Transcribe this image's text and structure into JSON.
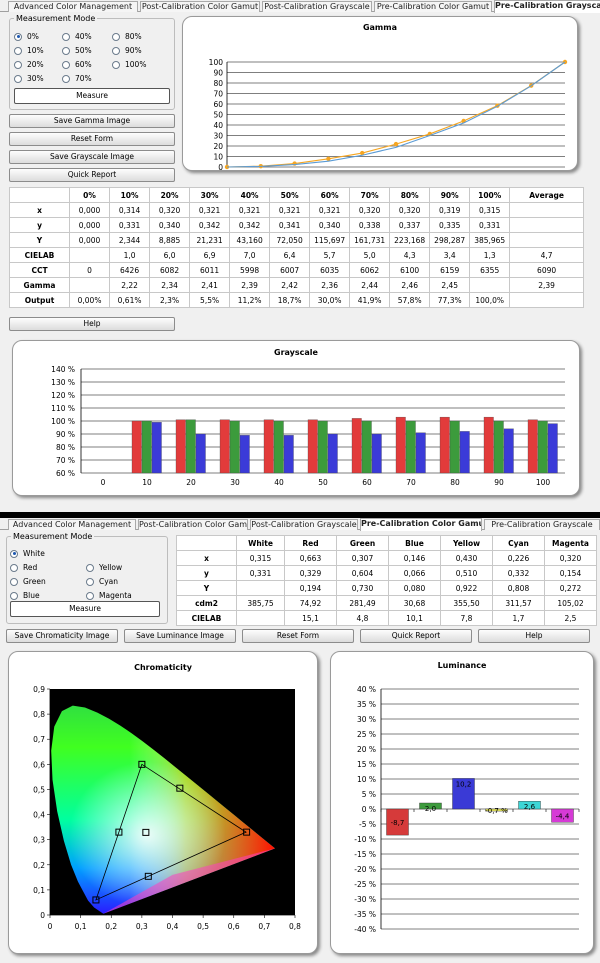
{
  "top": {
    "tabs": [
      "Advanced Color Management",
      "Post-Calibration Color Gamut",
      "Post-Calibration Grayscale",
      "Pre-Calibration Color Gamut",
      "Pre-Calibration Grayscale"
    ],
    "active_tab": 4,
    "measurement_mode": {
      "legend": "Measurement Mode",
      "options": [
        "0%",
        "10%",
        "20%",
        "30%",
        "40%",
        "50%",
        "60%",
        "70%",
        "80%",
        "90%",
        "100%"
      ],
      "selected": "0%"
    },
    "buttons": {
      "measure": "Measure",
      "save_gamma": "Save Gamma Image",
      "reset": "Reset Form",
      "save_grayscale": "Save Grayscale Image",
      "quick_report": "Quick Report",
      "help": "Help"
    },
    "table": {
      "headers": [
        "",
        "0%",
        "10%",
        "20%",
        "30%",
        "40%",
        "50%",
        "60%",
        "70%",
        "80%",
        "90%",
        "100%",
        "Average"
      ],
      "rows": [
        [
          "x",
          "0,000",
          "0,314",
          "0,320",
          "0,321",
          "0,321",
          "0,321",
          "0,321",
          "0,320",
          "0,320",
          "0,319",
          "0,315",
          ""
        ],
        [
          "y",
          "0,000",
          "0,331",
          "0,340",
          "0,342",
          "0,342",
          "0,341",
          "0,340",
          "0,338",
          "0,337",
          "0,335",
          "0,331",
          ""
        ],
        [
          "Y",
          "0,000",
          "2,344",
          "8,885",
          "21,231",
          "43,160",
          "72,050",
          "115,697",
          "161,731",
          "223,168",
          "298,287",
          "385,965",
          ""
        ],
        [
          "CIELAB",
          "",
          "1,0",
          "6,0",
          "6,9",
          "7,0",
          "6,4",
          "5,7",
          "5,0",
          "4,3",
          "3,4",
          "1,3",
          "4,7"
        ],
        [
          "CCT",
          "0",
          "6426",
          "6082",
          "6011",
          "5998",
          "6007",
          "6035",
          "6062",
          "6100",
          "6159",
          "6355",
          "6090"
        ],
        [
          "Gamma",
          "",
          "2,22",
          "2,34",
          "2,41",
          "2,39",
          "2,42",
          "2,36",
          "2,44",
          "2,46",
          "2,45",
          "",
          "2,39"
        ],
        [
          "Output",
          "0,00%",
          "0,61%",
          "2,3%",
          "5,5%",
          "11,2%",
          "18,7%",
          "30,0%",
          "41,9%",
          "57,8%",
          "77,3%",
          "100,0%",
          ""
        ]
      ]
    }
  },
  "bottom": {
    "tabs": [
      "Advanced Color Management",
      "Post-Calibration Color Gamut",
      "Post-Calibration Grayscale",
      "Pre-Calibration Color Gamut",
      "Pre-Calibration Grayscale"
    ],
    "active_tab": 3,
    "measurement_mode": {
      "legend": "Measurement Mode",
      "options": [
        "White",
        "Red",
        "Green",
        "Blue",
        "Yellow",
        "Cyan",
        "Magenta"
      ],
      "selected": "White"
    },
    "buttons": {
      "measure": "Measure",
      "save_chromaticity": "Save Chromaticity Image",
      "save_luminance": "Save Luminance Image",
      "reset": "Reset Form",
      "quick_report": "Quick Report",
      "help": "Help"
    },
    "table": {
      "headers": [
        "",
        "White",
        "Red",
        "Green",
        "Blue",
        "Yellow",
        "Cyan",
        "Magenta"
      ],
      "rows": [
        [
          "x",
          "0,315",
          "0,663",
          "0,307",
          "0,146",
          "0,430",
          "0,226",
          "0,320"
        ],
        [
          "y",
          "0,331",
          "0,329",
          "0,604",
          "0,066",
          "0,510",
          "0,332",
          "0,154"
        ],
        [
          "Y",
          "",
          "0,194",
          "0,730",
          "0,080",
          "0,922",
          "0,808",
          "0,272"
        ],
        [
          "cdm2",
          "385,75",
          "74,92",
          "281,49",
          "30,68",
          "355,50",
          "311,57",
          "105,02"
        ],
        [
          "CIELAB",
          "",
          "15,1",
          "4,8",
          "10,1",
          "7,8",
          "1,7",
          "2,5"
        ]
      ]
    }
  },
  "chart_data": [
    {
      "type": "line",
      "title": "Gamma",
      "x": [
        0,
        10,
        20,
        30,
        40,
        50,
        60,
        70,
        80,
        90,
        100
      ],
      "series": [
        {
          "values": [
            0,
            0.8,
            3.3,
            7.8,
            13.3,
            21.8,
            31.5,
            43.8,
            58.4,
            77.5,
            100
          ],
          "color": "#f5a623"
        },
        {
          "values": [
            0,
            0.6,
            2.3,
            5.5,
            11.2,
            18.7,
            30.0,
            41.9,
            57.8,
            77.3,
            100
          ],
          "color": "#5b9bd5"
        }
      ],
      "xticks": [
        10,
        20,
        30,
        40,
        50,
        60,
        70,
        80,
        90
      ],
      "yticks": [
        0,
        10,
        20,
        30,
        40,
        50,
        60,
        70,
        80,
        90,
        100
      ],
      "xlim": [
        0,
        100
      ],
      "ylim": [
        0,
        100
      ],
      "grid": true
    },
    {
      "type": "bar",
      "title": "Grayscale",
      "categories": [
        "0",
        "10",
        "20",
        "30",
        "40",
        "50",
        "60",
        "70",
        "80",
        "90",
        "100"
      ],
      "series": [
        {
          "values": [
            null,
            100,
            101,
            101,
            101,
            101,
            102,
            103,
            103,
            103,
            101
          ],
          "color": "#e23b3b"
        },
        {
          "values": [
            null,
            100,
            101,
            100,
            100,
            100,
            100,
            100,
            100,
            100,
            100
          ],
          "color": "#3c9b3c"
        },
        {
          "values": [
            null,
            99,
            90,
            89,
            89,
            90,
            90,
            91,
            92,
            94,
            98
          ],
          "color": "#3b3bd8"
        }
      ],
      "ylim": [
        60,
        140
      ],
      "yticks": [
        "60 %",
        "70 %",
        "80 %",
        "90 %",
        "100 %",
        "110 %",
        "120 %",
        "130 %",
        "140 %"
      ],
      "grid": true
    },
    {
      "type": "scatter",
      "title": "Chromaticity",
      "points": [
        {
          "name": "Red",
          "x": 0.642,
          "y": 0.33
        },
        {
          "name": "Green",
          "x": 0.3,
          "y": 0.6
        },
        {
          "name": "Blue",
          "x": 0.15,
          "y": 0.06
        },
        {
          "name": "Yellow",
          "x": 0.424,
          "y": 0.505
        },
        {
          "name": "Cyan",
          "x": 0.225,
          "y": 0.33
        },
        {
          "name": "Magenta",
          "x": 0.321,
          "y": 0.154
        },
        {
          "name": "White",
          "x": 0.313,
          "y": 0.329
        }
      ],
      "xticks": [
        "0",
        "0,1",
        "0,2",
        "0,3",
        "0,4",
        "0,5",
        "0,6",
        "0,7",
        "0,8"
      ],
      "yticks": [
        "0",
        "0,1",
        "0,2",
        "0,3",
        "0,4",
        "0,5",
        "0,6",
        "0,7",
        "0,8",
        "0,9"
      ],
      "xlim": [
        0,
        0.8
      ],
      "ylim": [
        0,
        0.9
      ],
      "background": "#000000"
    },
    {
      "type": "bar",
      "title": "Luminance",
      "categories": [
        "Red",
        "Green",
        "Blue",
        "Yellow",
        "Cyan",
        "Magenta"
      ],
      "values": [
        -8.7,
        2.0,
        10.2,
        -0.7,
        2.6,
        -4.4
      ],
      "labels": [
        "-8,7",
        "2,0",
        "10,2",
        "-0,7 %",
        "2,6",
        "-4,4"
      ],
      "colors": [
        "#d63a3a",
        "#3d9b3d",
        "#3a3ad6",
        "#e8e85a",
        "#3dd6d6",
        "#d63ad6"
      ],
      "ylim": [
        -40,
        40
      ],
      "yticks": [
        "-40 %",
        "-35 %",
        "-30 %",
        "-25 %",
        "-20 %",
        "-15 %",
        "-10 %",
        "-5 %",
        "0 %",
        "5 %",
        "10 %",
        "15 %",
        "20 %",
        "25 %",
        "30 %",
        "35 %",
        "40 %"
      ],
      "grid": true
    }
  ]
}
